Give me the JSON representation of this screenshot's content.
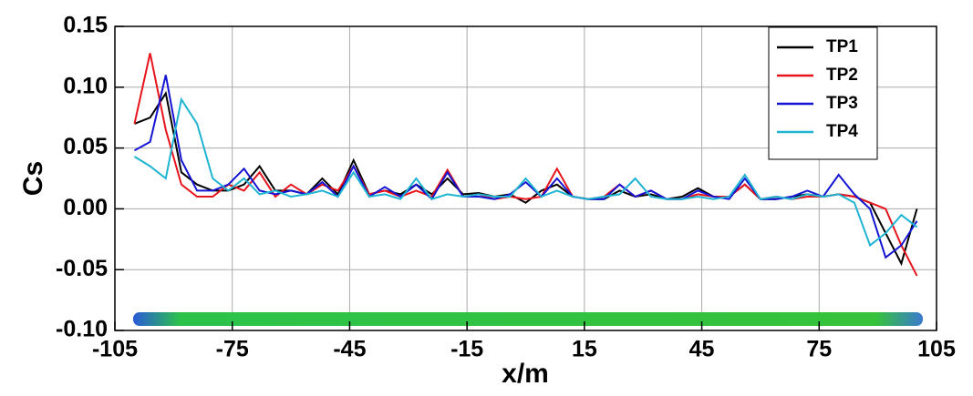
{
  "chart_data": {
    "type": "line",
    "x_label": "x/m",
    "y_label": "Cs",
    "x": [
      -100,
      -96,
      -92,
      -88,
      -84,
      -80,
      -76,
      -72,
      -68,
      -64,
      -60,
      -56,
      -52,
      -48,
      -44,
      -40,
      -36,
      -32,
      -28,
      -24,
      -20,
      -16,
      -12,
      -8,
      -4,
      0,
      4,
      8,
      12,
      16,
      20,
      24,
      28,
      32,
      36,
      40,
      44,
      48,
      52,
      56,
      60,
      64,
      68,
      72,
      76,
      80,
      84,
      88,
      92,
      96,
      100
    ],
    "series": [
      {
        "name": "TP1",
        "color": "#000000",
        "values": [
          0.07,
          0.075,
          0.095,
          0.03,
          0.02,
          0.015,
          0.015,
          0.02,
          0.035,
          0.015,
          0.015,
          0.012,
          0.025,
          0.012,
          0.04,
          0.012,
          0.015,
          0.012,
          0.02,
          0.012,
          0.025,
          0.012,
          0.013,
          0.01,
          0.012,
          0.005,
          0.015,
          0.02,
          0.01,
          0.008,
          0.008,
          0.015,
          0.01,
          0.012,
          0.008,
          0.01,
          0.017,
          0.01,
          0.01,
          0.02,
          0.008,
          0.008,
          0.01,
          0.012,
          0.01,
          0.012,
          0.01,
          0.005,
          -0.02,
          -0.045,
          0.0
        ]
      },
      {
        "name": "TP2",
        "color": "#e8141c",
        "values": [
          0.07,
          0.128,
          0.065,
          0.02,
          0.01,
          0.01,
          0.02,
          0.015,
          0.03,
          0.01,
          0.02,
          0.012,
          0.02,
          0.015,
          0.035,
          0.012,
          0.015,
          0.01,
          0.015,
          0.01,
          0.032,
          0.01,
          0.012,
          0.008,
          0.01,
          0.008,
          0.01,
          0.033,
          0.01,
          0.008,
          0.01,
          0.02,
          0.01,
          0.015,
          0.008,
          0.008,
          0.012,
          0.01,
          0.01,
          0.02,
          0.008,
          0.01,
          0.008,
          0.01,
          0.01,
          0.012,
          0.01,
          0.005,
          0.0,
          -0.03,
          -0.055
        ]
      },
      {
        "name": "TP3",
        "color": "#1414d4",
        "values": [
          0.048,
          0.055,
          0.11,
          0.04,
          0.015,
          0.015,
          0.02,
          0.033,
          0.015,
          0.012,
          0.015,
          0.012,
          0.022,
          0.01,
          0.035,
          0.01,
          0.018,
          0.01,
          0.02,
          0.008,
          0.03,
          0.01,
          0.01,
          0.008,
          0.012,
          0.022,
          0.01,
          0.025,
          0.01,
          0.008,
          0.008,
          0.02,
          0.01,
          0.015,
          0.008,
          0.008,
          0.015,
          0.01,
          0.008,
          0.025,
          0.008,
          0.008,
          0.01,
          0.015,
          0.01,
          0.028,
          0.012,
          0.0,
          -0.04,
          -0.03,
          -0.01
        ]
      },
      {
        "name": "TP4",
        "color": "#1eb4d2",
        "values": [
          0.043,
          0.035,
          0.025,
          0.09,
          0.07,
          0.025,
          0.015,
          0.025,
          0.012,
          0.015,
          0.01,
          0.012,
          0.015,
          0.01,
          0.03,
          0.01,
          0.012,
          0.008,
          0.025,
          0.008,
          0.012,
          0.01,
          0.012,
          0.01,
          0.01,
          0.025,
          0.01,
          0.015,
          0.01,
          0.008,
          0.01,
          0.012,
          0.025,
          0.01,
          0.008,
          0.008,
          0.01,
          0.008,
          0.01,
          0.028,
          0.008,
          0.01,
          0.008,
          0.012,
          0.01,
          0.012,
          0.005,
          -0.03,
          -0.02,
          -0.005,
          -0.015
        ]
      }
    ],
    "xlim": [
      -105,
      105
    ],
    "xticks": [
      -105,
      -75,
      -45,
      -15,
      15,
      45,
      75,
      105
    ],
    "ylim": [
      -0.1,
      0.15
    ],
    "yticks": [
      {
        "value": -0.1,
        "label": "-0.10"
      },
      -0.05,
      {
        "value": 0,
        "label": "0.00"
      },
      0.05,
      {
        "value": 0.1,
        "label": "0.10"
      },
      0.15
    ],
    "grid": true,
    "legend": "upper right"
  }
}
